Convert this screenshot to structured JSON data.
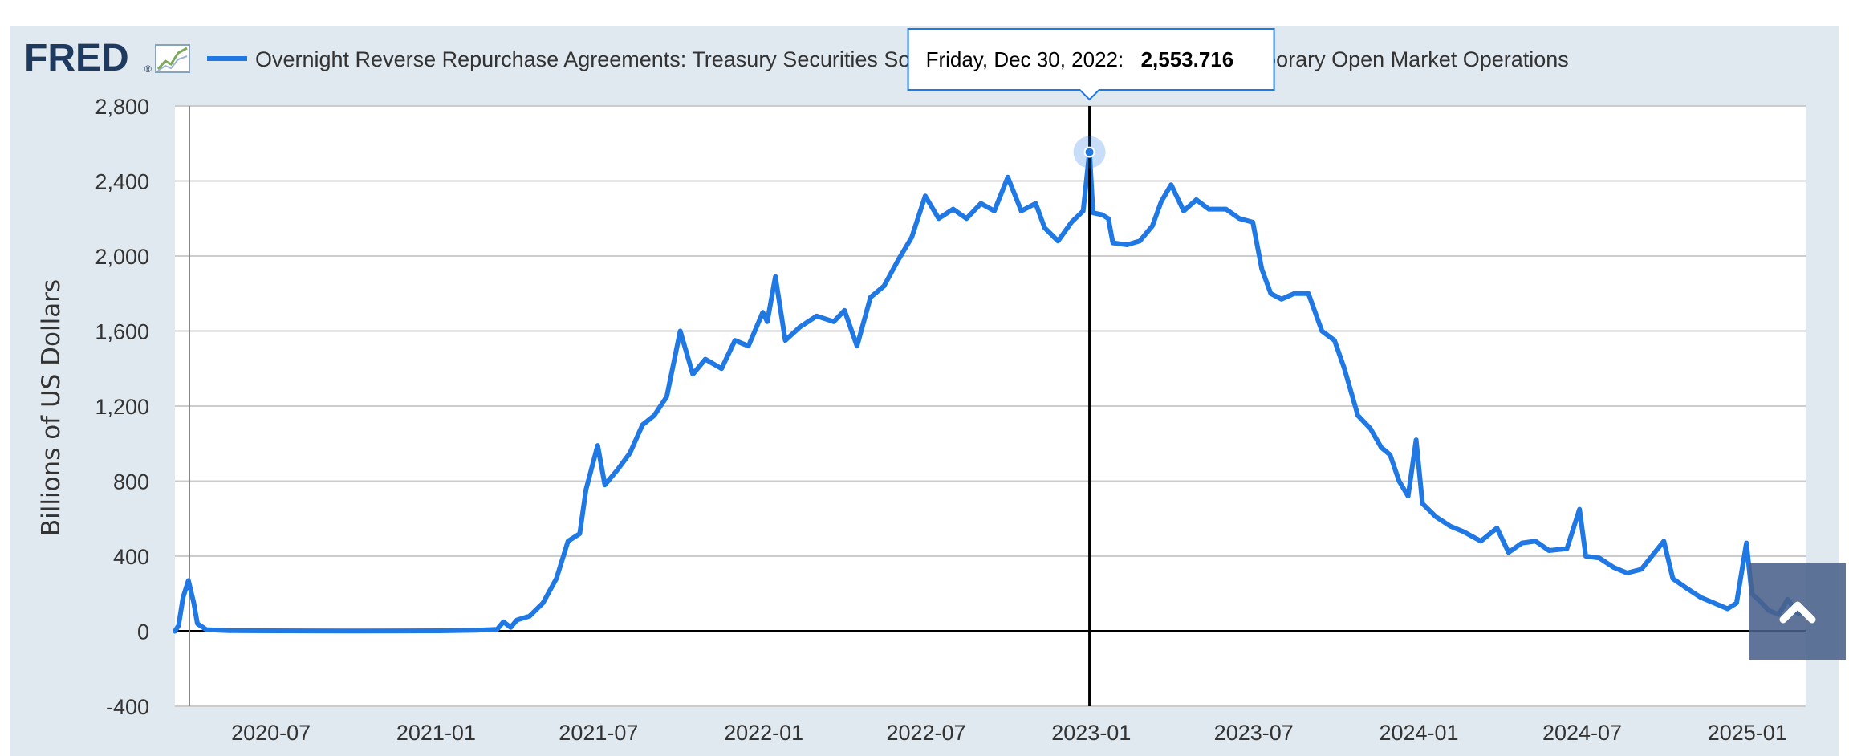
{
  "brand": {
    "logo_text": "FRED",
    "logo_mark": "®",
    "logo_icon": "trend-chart-icon",
    "accent_color": "#1e3a5f"
  },
  "legend": {
    "series_label": "Overnight Reverse Repurchase Agreements: Treasury Securities Sold by the Federal Reserve in the Temporary Open Market Operations",
    "color": "#1f78e3"
  },
  "tooltip": {
    "date": "Friday, Dec 30, 2022:",
    "value": "2,553.716",
    "border_color": "#1f78e3"
  },
  "scroll_button": {
    "icon": "chevron-up-icon"
  },
  "chart_data": {
    "type": "line",
    "title": "",
    "xlabel": "",
    "ylabel": "Billions of US Dollars",
    "ylim": [
      -400,
      2800
    ],
    "y_ticks": [
      "2,800",
      "2,400",
      "2,000",
      "1,600",
      "1,200",
      "800",
      "400",
      "0",
      "-400"
    ],
    "x_ticks": [
      "2020-07",
      "2021-01",
      "2021-07",
      "2022-01",
      "2022-07",
      "2023-01",
      "2023-07",
      "2024-01",
      "2024-07",
      "2025-01"
    ],
    "xlim": [
      "2020-03-16",
      "2025-03-07"
    ],
    "grid": true,
    "legend_position": "top",
    "highlight": {
      "x": "2022-12-30",
      "y": 2553.716
    },
    "series": [
      {
        "name": "Overnight Reverse Repurchase Agreements: Treasury Securities Sold by the Federal Reserve in the Temporary Open Market Operations",
        "color": "#1f78e3",
        "points": [
          [
            "2020-03-16",
            0
          ],
          [
            "2020-03-20",
            30
          ],
          [
            "2020-03-25",
            180
          ],
          [
            "2020-03-31",
            270
          ],
          [
            "2020-04-06",
            150
          ],
          [
            "2020-04-10",
            40
          ],
          [
            "2020-04-20",
            8
          ],
          [
            "2020-05-15",
            3
          ],
          [
            "2020-07-01",
            2
          ],
          [
            "2020-10-01",
            1
          ],
          [
            "2021-01-04",
            2
          ],
          [
            "2021-02-15",
            5
          ],
          [
            "2021-03-10",
            10
          ],
          [
            "2021-03-17",
            50
          ],
          [
            "2021-03-25",
            20
          ],
          [
            "2021-04-01",
            60
          ],
          [
            "2021-04-15",
            80
          ],
          [
            "2021-04-30",
            150
          ],
          [
            "2021-05-15",
            280
          ],
          [
            "2021-05-28",
            480
          ],
          [
            "2021-06-10",
            520
          ],
          [
            "2021-06-17",
            755
          ],
          [
            "2021-06-30",
            990
          ],
          [
            "2021-07-08",
            780
          ],
          [
            "2021-07-22",
            860
          ],
          [
            "2021-08-05",
            950
          ],
          [
            "2021-08-19",
            1100
          ],
          [
            "2021-09-01",
            1150
          ],
          [
            "2021-09-15",
            1250
          ],
          [
            "2021-09-30",
            1600
          ],
          [
            "2021-10-14",
            1370
          ],
          [
            "2021-10-28",
            1450
          ],
          [
            "2021-11-15",
            1400
          ],
          [
            "2021-11-30",
            1550
          ],
          [
            "2021-12-15",
            1520
          ],
          [
            "2021-12-31",
            1700
          ],
          [
            "2022-01-05",
            1650
          ],
          [
            "2022-01-14",
            1890
          ],
          [
            "2022-01-25",
            1550
          ],
          [
            "2022-02-10",
            1620
          ],
          [
            "2022-03-01",
            1680
          ],
          [
            "2022-03-20",
            1650
          ],
          [
            "2022-04-01",
            1710
          ],
          [
            "2022-04-15",
            1520
          ],
          [
            "2022-04-30",
            1780
          ],
          [
            "2022-05-15",
            1840
          ],
          [
            "2022-05-31",
            1980
          ],
          [
            "2022-06-15",
            2100
          ],
          [
            "2022-06-30",
            2320
          ],
          [
            "2022-07-15",
            2200
          ],
          [
            "2022-07-31",
            2250
          ],
          [
            "2022-08-15",
            2200
          ],
          [
            "2022-08-31",
            2280
          ],
          [
            "2022-09-15",
            2240
          ],
          [
            "2022-09-30",
            2420
          ],
          [
            "2022-10-15",
            2240
          ],
          [
            "2022-10-31",
            2280
          ],
          [
            "2022-11-10",
            2150
          ],
          [
            "2022-11-25",
            2080
          ],
          [
            "2022-12-10",
            2180
          ],
          [
            "2022-12-23",
            2240
          ],
          [
            "2022-12-30",
            2553.716
          ],
          [
            "2023-01-03",
            2230
          ],
          [
            "2023-01-13",
            2220
          ],
          [
            "2023-01-20",
            2200
          ],
          [
            "2023-01-25",
            2070
          ],
          [
            "2023-02-10",
            2060
          ],
          [
            "2023-02-24",
            2080
          ],
          [
            "2023-03-10",
            2160
          ],
          [
            "2023-03-20",
            2290
          ],
          [
            "2023-03-31",
            2380
          ],
          [
            "2023-04-14",
            2240
          ],
          [
            "2023-04-28",
            2300
          ],
          [
            "2023-05-12",
            2250
          ],
          [
            "2023-05-31",
            2250
          ],
          [
            "2023-06-15",
            2200
          ],
          [
            "2023-06-30",
            2180
          ],
          [
            "2023-07-10",
            1930
          ],
          [
            "2023-07-20",
            1800
          ],
          [
            "2023-08-01",
            1770
          ],
          [
            "2023-08-15",
            1800
          ],
          [
            "2023-08-31",
            1800
          ],
          [
            "2023-09-15",
            1600
          ],
          [
            "2023-09-29",
            1550
          ],
          [
            "2023-10-10",
            1400
          ],
          [
            "2023-10-25",
            1150
          ],
          [
            "2023-11-08",
            1080
          ],
          [
            "2023-11-20",
            980
          ],
          [
            "2023-11-30",
            940
          ],
          [
            "2023-12-10",
            800
          ],
          [
            "2023-12-20",
            720
          ],
          [
            "2023-12-29",
            1020
          ],
          [
            "2024-01-05",
            680
          ],
          [
            "2024-01-20",
            610
          ],
          [
            "2024-02-05",
            560
          ],
          [
            "2024-02-20",
            530
          ],
          [
            "2024-03-10",
            480
          ],
          [
            "2024-03-28",
            550
          ],
          [
            "2024-04-10",
            420
          ],
          [
            "2024-04-25",
            470
          ],
          [
            "2024-05-10",
            480
          ],
          [
            "2024-05-25",
            430
          ],
          [
            "2024-06-14",
            440
          ],
          [
            "2024-06-28",
            650
          ],
          [
            "2024-07-05",
            400
          ],
          [
            "2024-07-20",
            390
          ],
          [
            "2024-08-05",
            340
          ],
          [
            "2024-08-20",
            310
          ],
          [
            "2024-09-05",
            330
          ],
          [
            "2024-09-15",
            390
          ],
          [
            "2024-09-30",
            480
          ],
          [
            "2024-10-10",
            280
          ],
          [
            "2024-10-25",
            230
          ],
          [
            "2024-11-10",
            180
          ],
          [
            "2024-11-25",
            150
          ],
          [
            "2024-12-10",
            120
          ],
          [
            "2024-12-20",
            150
          ],
          [
            "2024-12-31",
            470
          ],
          [
            "2025-01-06",
            200
          ],
          [
            "2025-01-15",
            160
          ],
          [
            "2025-01-25",
            110
          ],
          [
            "2025-02-05",
            90
          ],
          [
            "2025-02-15",
            170
          ],
          [
            "2025-02-25",
            100
          ],
          [
            "2025-03-05",
            90
          ]
        ]
      }
    ]
  }
}
